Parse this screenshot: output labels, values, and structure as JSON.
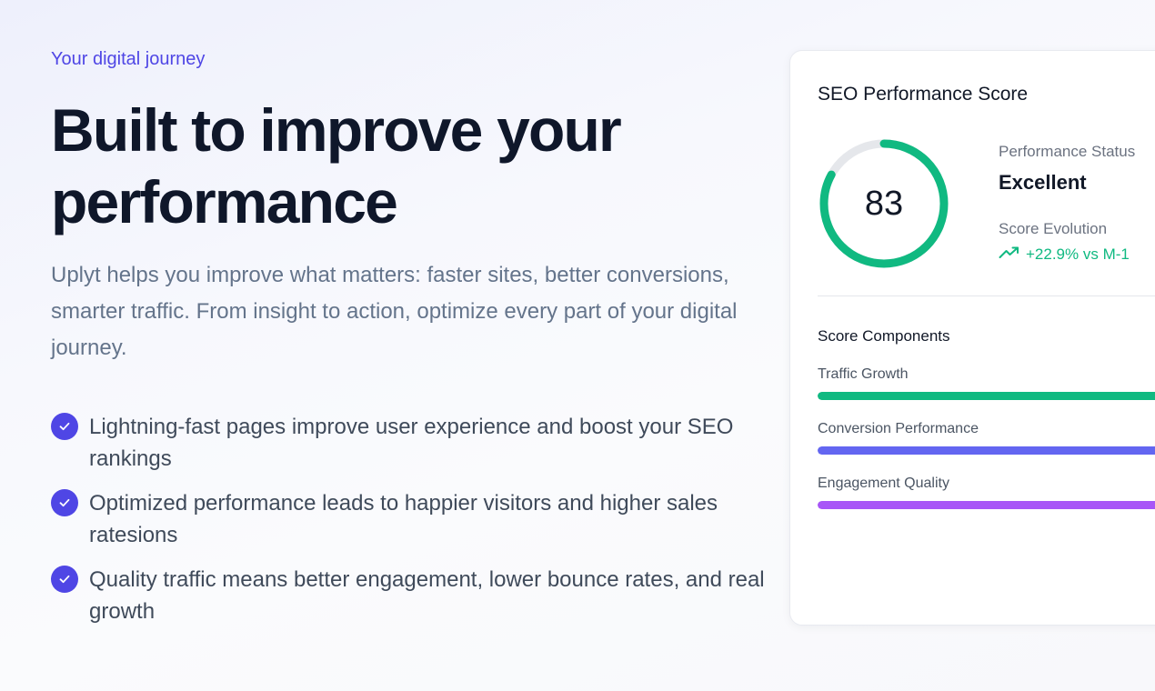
{
  "hero": {
    "eyebrow": "Your digital journey",
    "headline": "Built to improve your performance",
    "lead": "Uplyt helps you improve what matters: faster sites, better conversions, smarter traffic. From insight to action, optimize every part of your digital journey.",
    "benefits": [
      "Lightning-fast pages improve user experience and boost your SEO rankings",
      "Optimized performance leads to happier visitors and higher sales ratesions",
      "Quality traffic means better engagement, lower bounce rates, and real growth"
    ],
    "check_icon": "check-circle-icon",
    "accent_color": "#4f46e5"
  },
  "card": {
    "title": "SEO Performance Score",
    "score": "83",
    "score_value": 83,
    "score_max": 100,
    "score_color": "#10b981",
    "status_label": "Performance Status",
    "status_value": "Excellent",
    "evolution_label": "Score Evolution",
    "evolution_icon": "trending-up-icon",
    "evolution_value": "+22.9% vs M-1",
    "components_title": "Score Components",
    "components": [
      {
        "label": "Traffic Growth",
        "color": "#10b981",
        "fill": 1.0
      },
      {
        "label": "Conversion Performance",
        "color": "#6366f1",
        "fill": 1.0
      },
      {
        "label": "Engagement Quality",
        "color": "#a855f7",
        "fill": 1.0
      }
    ]
  }
}
